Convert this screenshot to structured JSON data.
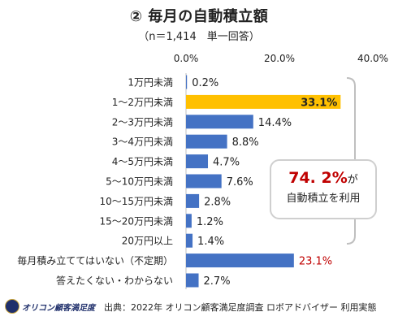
{
  "title": "② 毎月の自動積立額",
  "subtitle": "（n＝1,414　単一回答）",
  "callout": {
    "percent": "74. 2%",
    "suffix": "が",
    "line2": "自動積立を利用"
  },
  "footer": {
    "source": "出典：2022年 オリコン顧客満足度調査 ロボアドバイザー 利用実態",
    "logo_text": "オリコン顧客満足度"
  },
  "colors": {
    "bar": "#4472c4",
    "highlight": "#ffc000",
    "highlight_text": "#c00000"
  },
  "chart_data": {
    "type": "bar",
    "orientation": "horizontal",
    "xlim": [
      0,
      40
    ],
    "ticks": [
      "0.0%",
      "20.0%",
      "40.0%"
    ],
    "categories": [
      "1万円未満",
      "1～2万円未満",
      "2～3万円未満",
      "3～4万円未満",
      "4～5万円未満",
      "5～10万円未満",
      "10～15万円未満",
      "15～20万円未満",
      "20万円以上",
      "毎月積み立ててはいない（不定期）",
      "答えたくない・わからない"
    ],
    "values": [
      0.2,
      33.1,
      14.4,
      8.8,
      4.7,
      7.6,
      2.8,
      1.2,
      1.4,
      23.1,
      2.7
    ],
    "labels": [
      "0.2%",
      "33.1%",
      "14.4%",
      "8.8%",
      "4.7%",
      "7.6%",
      "2.8%",
      "1.2%",
      "1.4%",
      "23.1%",
      "2.7%"
    ],
    "highlight_index": 1,
    "red_label_index": 9
  }
}
